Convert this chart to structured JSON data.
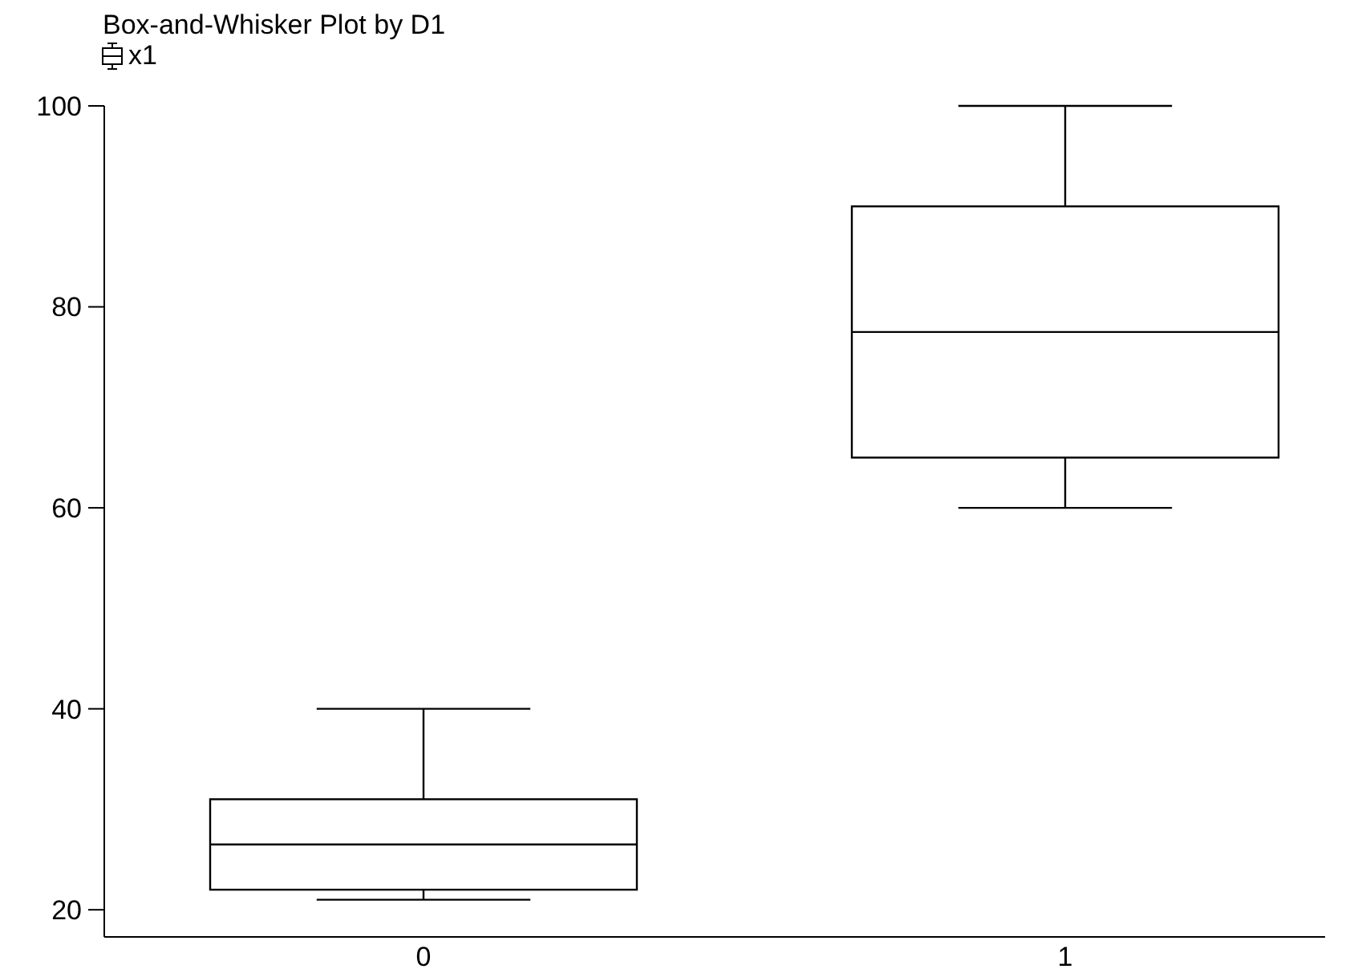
{
  "chart_data": {
    "type": "box",
    "title": "Box-and-Whisker Plot by D1",
    "categories": [
      "0",
      "1"
    ],
    "series": [
      {
        "name": "x1",
        "color": "#000000",
        "boxes": [
          {
            "low": 21,
            "q1": 22,
            "median": 26.5,
            "q3": 31,
            "high": 40
          },
          {
            "low": 60,
            "q1": 65,
            "median": 77.5,
            "q3": 90,
            "high": 100
          }
        ]
      }
    ],
    "ylim": [
      17.3,
      100
    ],
    "yticks": [
      20,
      40,
      60,
      80,
      100
    ],
    "legend": "top left",
    "grid": false
  }
}
